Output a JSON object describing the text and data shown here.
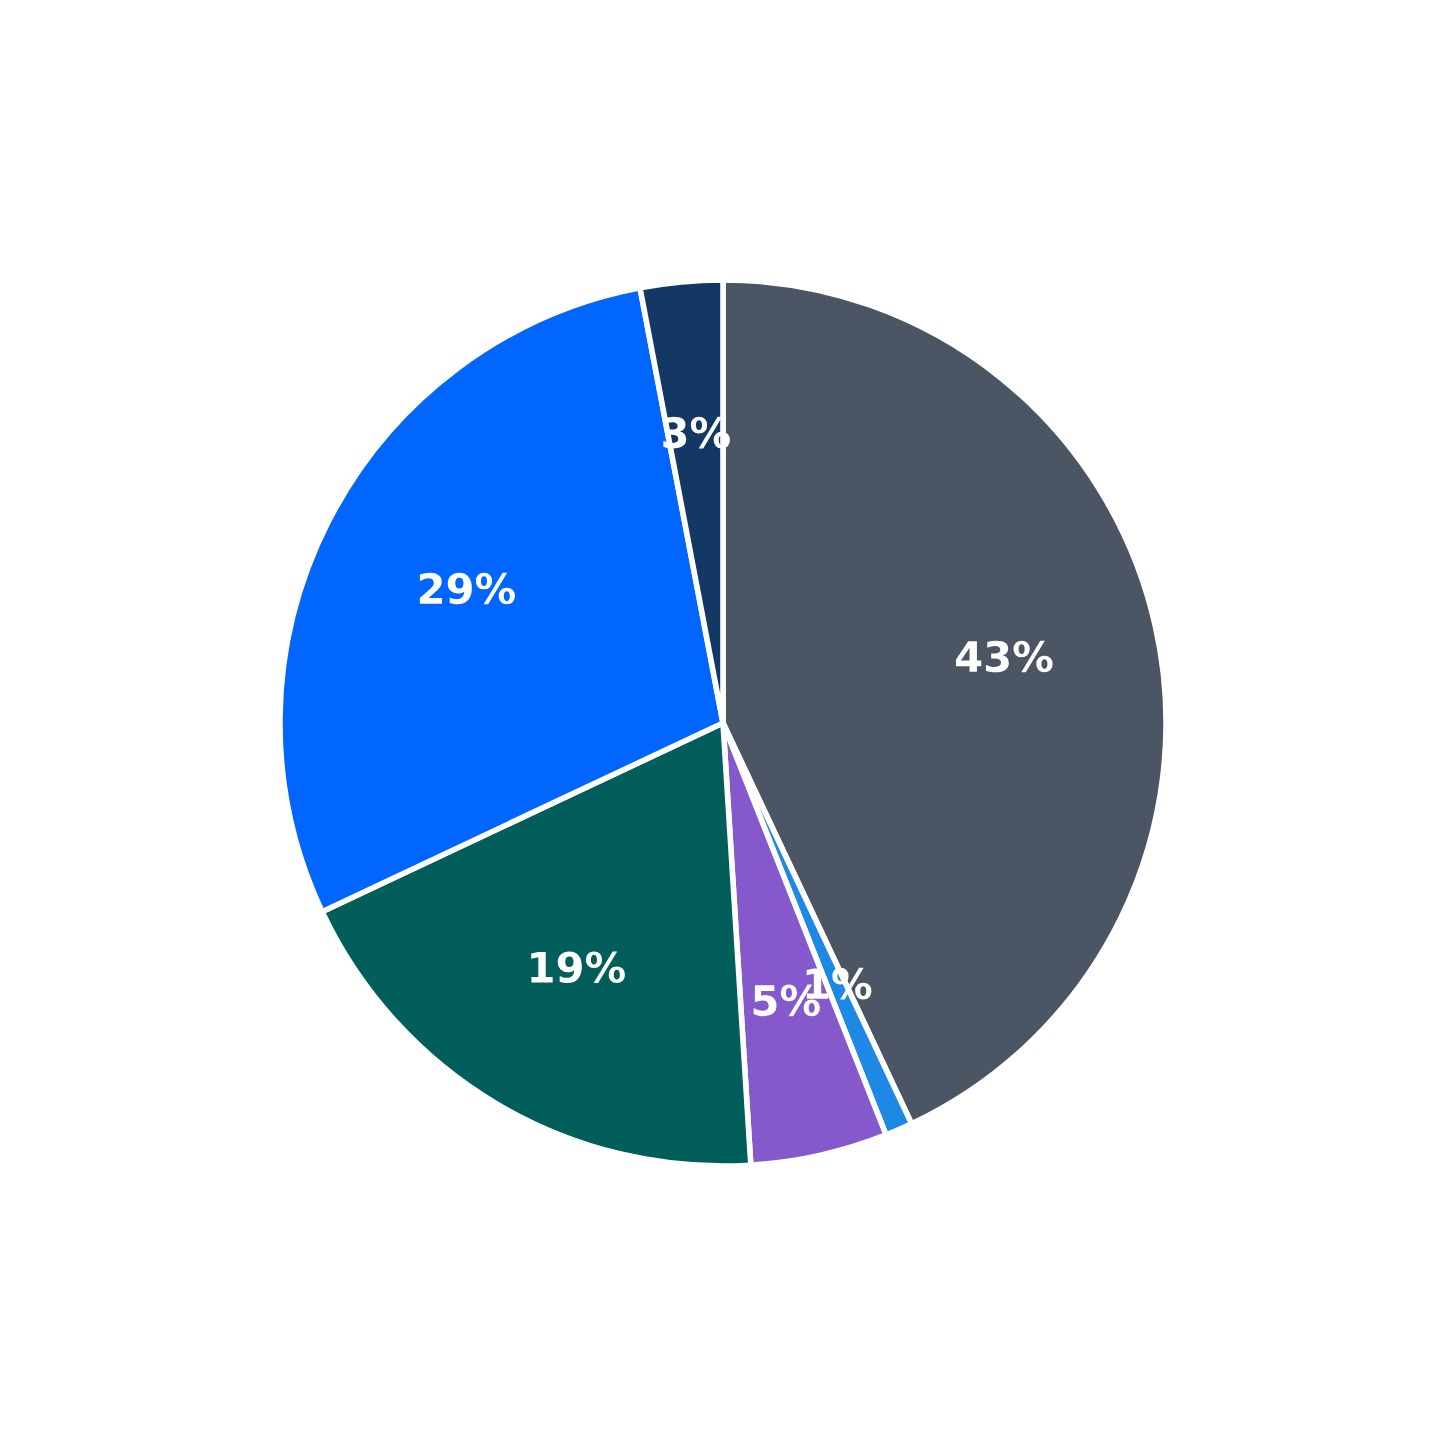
{
  "chart_data": {
    "type": "pie",
    "categories": [
      null,
      null,
      null,
      null,
      null,
      null
    ],
    "values": [
      43,
      1,
      5,
      19,
      29,
      3
    ],
    "colors": [
      "#4b5563",
      "#1e88e5",
      "#8558cc",
      "#025e5a",
      "#0066ff",
      "#133863"
    ],
    "value_labels": [
      "43%",
      "1%",
      "5%",
      "19%",
      "29%",
      "3%"
    ],
    "legend": false
  }
}
